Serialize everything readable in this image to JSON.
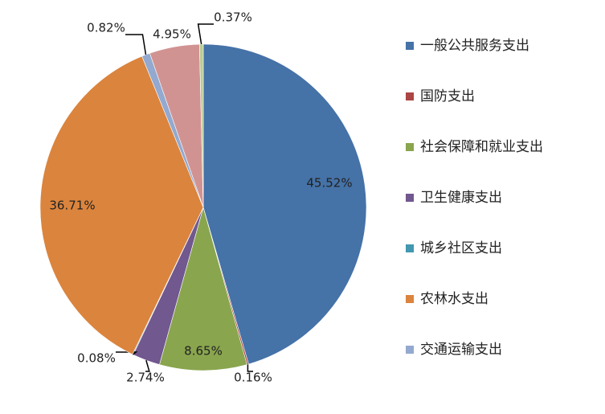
{
  "chart_data": {
    "type": "pie",
    "categories": [
      "一般公共服务支出",
      "国防支出",
      "社会保障和就业支出",
      "卫生健康支出",
      "城乡社区支出",
      "农林水支出",
      "交通运输支出",
      null,
      null
    ],
    "values": [
      45.52,
      0.16,
      8.65,
      2.74,
      0.08,
      36.71,
      0.82,
      4.95,
      0.37
    ],
    "value_labels": [
      "45.52%",
      "0.16%",
      "8.65%",
      "2.74%",
      "0.08%",
      "36.71%",
      "0.82%",
      "4.95%",
      "0.37%"
    ],
    "colors": [
      "#4572A7",
      "#AA4643",
      "#89A54E",
      "#71588F",
      "#4198AF",
      "#DB843D",
      "#93A9CF",
      "#D19392",
      "#B9CD96"
    ],
    "legend": "right"
  }
}
